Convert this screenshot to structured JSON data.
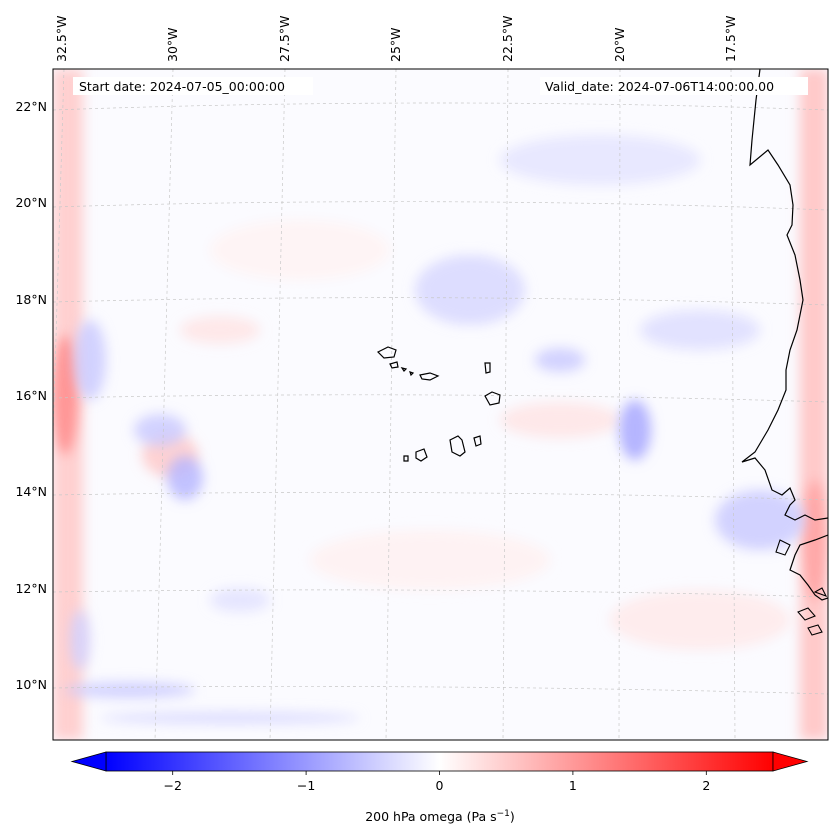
{
  "header": {
    "start_date": "Start date: 2024-07-05_00:00:00",
    "valid_date": "Valid_date: 2024-07-06T14:00:00.00"
  },
  "longitude_labels": [
    "32.5°W",
    "30°W",
    "27.5°W",
    "25°W",
    "22.5°W",
    "20°W",
    "17.5°W"
  ],
  "latitude_labels": [
    "22°N",
    "20°N",
    "18°N",
    "16°N",
    "14°N",
    "12°N",
    "10°N"
  ],
  "colorbar": {
    "label_main": "200 hPa omega (Pa s",
    "label_sup": "−1",
    "label_close": ")",
    "ticks": [
      "−2",
      "−1",
      "0",
      "1",
      "2"
    ],
    "tick_values": [
      -2,
      -1,
      0,
      1,
      2
    ],
    "range": [
      -2.5,
      2.5
    ],
    "colormap": "bwr",
    "extend": "both",
    "negative_color": "#0000ff",
    "neutral_color": "#ffffff",
    "positive_color": "#ff0000"
  },
  "map": {
    "field": "200 hPa omega",
    "region": "Cabo Verde / West African coast",
    "coastline_color": "#000000",
    "gridline_color": "#b0b0b0"
  }
}
